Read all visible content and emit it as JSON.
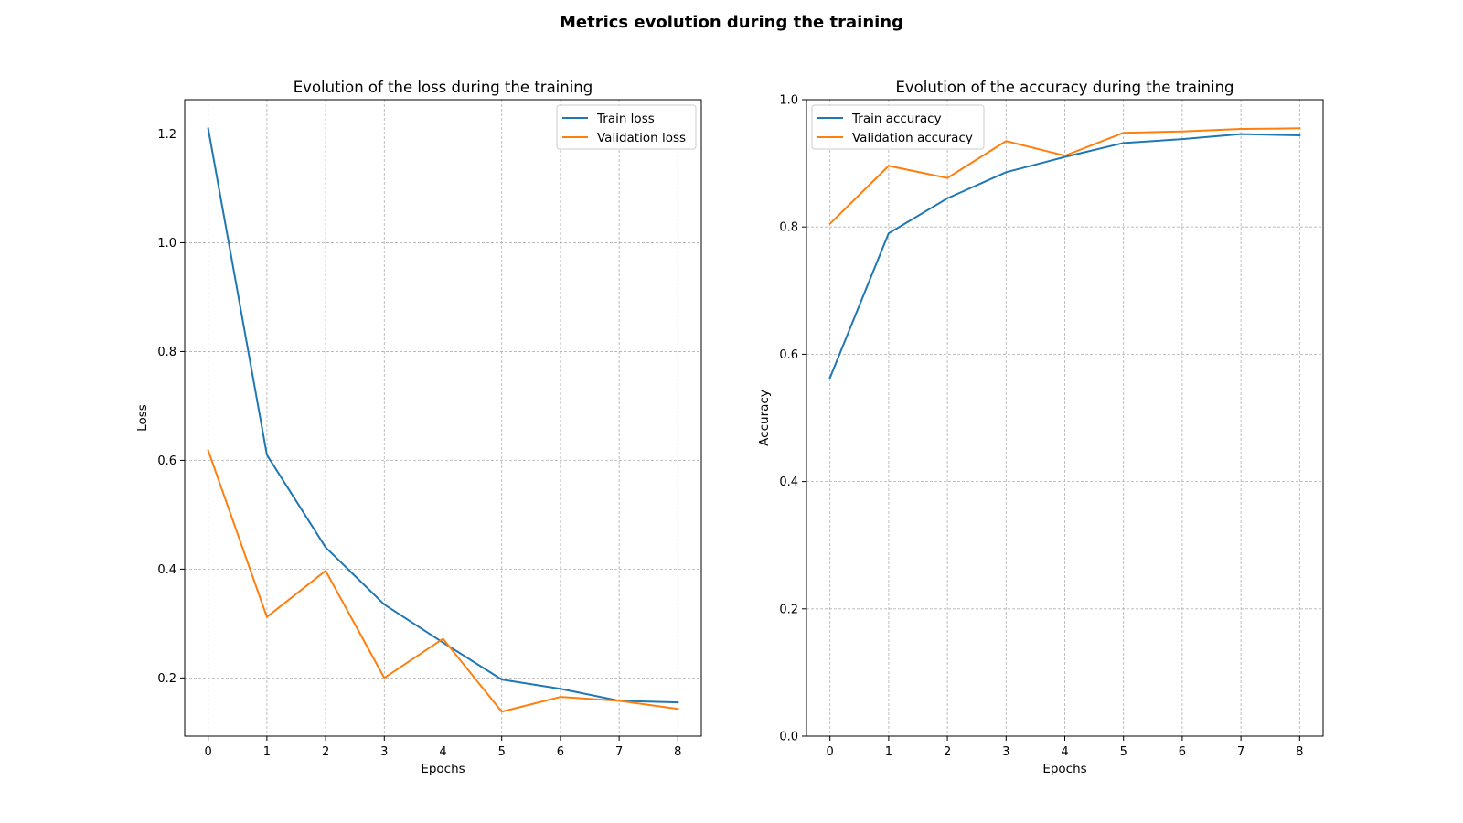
{
  "figure": {
    "suptitle": "Metrics evolution during the training"
  },
  "colors": {
    "train": "#1f77b4",
    "validation": "#ff7f0e",
    "grid": "#b0b0b0",
    "axes": "#000000",
    "legend_border": "#cccccc"
  },
  "chart_data": [
    {
      "type": "line",
      "title": "Evolution of the loss during the training",
      "xlabel": "Epochs",
      "ylabel": "Loss",
      "x": [
        0,
        1,
        2,
        3,
        4,
        5,
        6,
        7,
        8
      ],
      "xlim": [
        -0.4,
        8.4
      ],
      "ylim": [
        0.093,
        1.263
      ],
      "xticks": [
        0,
        1,
        2,
        3,
        4,
        5,
        6,
        7,
        8
      ],
      "yticks": [
        0.2,
        0.4,
        0.6,
        0.8,
        1.0,
        1.2
      ],
      "ytick_labels": [
        "0.2",
        "0.4",
        "0.6",
        "0.8",
        "1.0",
        "1.2"
      ],
      "grid": true,
      "legend_position": "upper-right",
      "series": [
        {
          "name": "Train loss",
          "color": "#1f77b4",
          "values": [
            1.21,
            0.61,
            0.44,
            0.335,
            0.265,
            0.197,
            0.18,
            0.158,
            0.155
          ]
        },
        {
          "name": "Validation loss",
          "color": "#ff7f0e",
          "values": [
            0.618,
            0.312,
            0.397,
            0.2,
            0.272,
            0.138,
            0.165,
            0.158,
            0.143
          ]
        }
      ]
    },
    {
      "type": "line",
      "title": "Evolution of the accuracy during the training",
      "xlabel": "Epochs",
      "ylabel": "Accuracy",
      "x": [
        0,
        1,
        2,
        3,
        4,
        5,
        6,
        7,
        8
      ],
      "xlim": [
        -0.4,
        8.4
      ],
      "ylim": [
        0.0,
        1.0
      ],
      "xticks": [
        0,
        1,
        2,
        3,
        4,
        5,
        6,
        7,
        8
      ],
      "yticks": [
        0.0,
        0.2,
        0.4,
        0.6,
        0.8,
        1.0
      ],
      "ytick_labels": [
        "0.0",
        "0.2",
        "0.4",
        "0.6",
        "0.8",
        "1.0"
      ],
      "grid": true,
      "legend_position": "upper-left",
      "series": [
        {
          "name": "Train accuracy",
          "color": "#1f77b4",
          "values": [
            0.563,
            0.79,
            0.845,
            0.886,
            0.91,
            0.932,
            0.938,
            0.946,
            0.944
          ]
        },
        {
          "name": "Validation accuracy",
          "color": "#ff7f0e",
          "values": [
            0.805,
            0.896,
            0.877,
            0.935,
            0.912,
            0.948,
            0.95,
            0.954,
            0.955
          ]
        }
      ]
    }
  ]
}
